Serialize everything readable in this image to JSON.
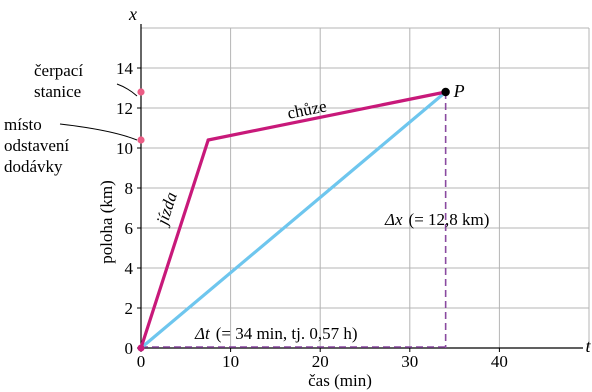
{
  "chart_data": {
    "type": "line",
    "xlabel": "čas (min)",
    "ylabel": "poloha (km)",
    "x_axis_symbol": "t",
    "y_axis_symbol": "x",
    "xlim": [
      0,
      50
    ],
    "ylim": [
      0,
      16
    ],
    "x_ticks": [
      0,
      10,
      20,
      30,
      40
    ],
    "y_ticks": [
      0,
      2,
      4,
      6,
      8,
      10,
      12,
      14
    ],
    "grid": true,
    "colors": {
      "path": "#c8197a",
      "line": "#6ec6ee",
      "dashed": "#8a4aa0",
      "grid": "#b4b4b4",
      "point": "#000000"
    },
    "series": [
      {
        "name": "jízda",
        "x": [
          0,
          7.5
        ],
        "y": [
          0,
          10.4
        ]
      },
      {
        "name": "chůze",
        "x": [
          7.5,
          34
        ],
        "y": [
          10.4,
          12.8
        ]
      }
    ],
    "average_line": {
      "x": [
        0,
        34
      ],
      "y": [
        0,
        12.8
      ]
    },
    "point": {
      "label": "P",
      "x": 34,
      "y": 12.8
    },
    "markers": [
      {
        "y": 12.8,
        "label_lines": [
          "čerpací",
          "stanice"
        ]
      },
      {
        "y": 10.4,
        "label_lines": [
          "místo",
          "odstavení",
          "dodávky"
        ]
      }
    ],
    "annotations": {
      "dx_symbol": "Δx",
      "dx_text": "(= 12,8 km)",
      "dt_symbol": "Δt",
      "dt_text": "(= 34 min, tj. 0,57 h)"
    }
  }
}
